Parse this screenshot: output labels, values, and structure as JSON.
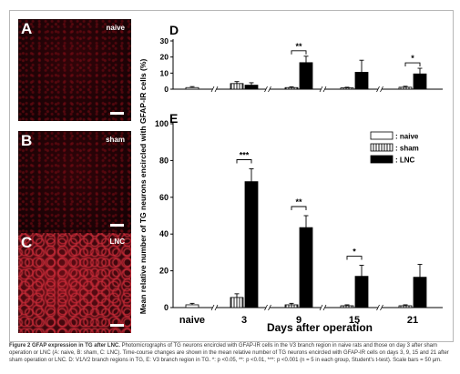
{
  "panels": {
    "a": {
      "letter": "A",
      "condition": "naive"
    },
    "b": {
      "letter": "B",
      "condition": "sham"
    },
    "c": {
      "letter": "C",
      "condition": "LNC"
    }
  },
  "colors": {
    "naive": "#ffffff",
    "sham": "#ffffff",
    "lnc": "#000000",
    "axis": "#000000"
  },
  "y_axis_label": "Mean relative number of TG neurons encircled with GFAP-IR cells (%)",
  "caption": {
    "title": "Figure 2 GFAP expression in TG after LNC.",
    "body": "Photomicrographs of TG neurons encircled with GFAP-IR cells in the V3 branch region in naive rats and those on day 3 after sham operation or LNC (A: naive, B: sham, C: LNC). Time-course changes are shown in the mean relative number of TG neurons encircled with GFAP-IR cells on days 3, 9, 15 and 21 after sham operation or LNC. D: V1/V2 branch regions in TG, E: V3 branch region in TG. *: p <0.05, **: p <0.01, ***: p <0.001 (n = 5 in each group, Student's t-test). Scale bars = 50 μm."
  },
  "chart_data": [
    {
      "panel": "D",
      "type": "bar",
      "categories": [
        "naive",
        "3",
        "9",
        "15",
        "21"
      ],
      "ylim": [
        0,
        30
      ],
      "yticks": [
        "0",
        "10",
        "20",
        "30"
      ],
      "series": [
        {
          "key": "naive",
          "values": [
            1.0,
            null,
            null,
            null,
            null
          ],
          "errors": [
            0.6,
            null,
            null,
            null,
            null
          ]
        },
        {
          "key": "sham",
          "values": [
            null,
            3.5,
            1.0,
            0.8,
            1.2
          ],
          "errors": [
            null,
            1.2,
            0.5,
            0.4,
            0.6
          ]
        },
        {
          "key": "lnc",
          "values": [
            null,
            2.5,
            16.5,
            10.5,
            9.5
          ],
          "errors": [
            null,
            1.5,
            4.0,
            7.5,
            3.5
          ]
        }
      ],
      "significance": [
        {
          "category": "9",
          "label": "**"
        },
        {
          "category": "21",
          "label": "*"
        }
      ]
    },
    {
      "panel": "E",
      "type": "bar",
      "categories": [
        "naive",
        "3",
        "9",
        "15",
        "21"
      ],
      "xlabel": "Days after operation",
      "ylim": [
        0,
        100
      ],
      "yticks": [
        "0",
        "20",
        "40",
        "60",
        "80",
        "100"
      ],
      "legend": {
        "position": "top-right",
        "entries": [
          ": naive",
          ": sham",
          ": LNC"
        ]
      },
      "series": [
        {
          "key": "naive",
          "values": [
            1.5,
            null,
            null,
            null,
            null
          ],
          "errors": [
            0.8,
            null,
            null,
            null,
            null
          ]
        },
        {
          "key": "sham",
          "values": [
            null,
            5.5,
            1.5,
            1.0,
            1.0
          ],
          "errors": [
            null,
            2.0,
            0.8,
            0.5,
            0.5
          ]
        },
        {
          "key": "lnc",
          "values": [
            null,
            68.5,
            43.5,
            17.0,
            16.5
          ],
          "errors": [
            null,
            7.0,
            6.5,
            6.0,
            7.0
          ]
        }
      ],
      "significance": [
        {
          "category": "3",
          "label": "***"
        },
        {
          "category": "9",
          "label": "**"
        },
        {
          "category": "15",
          "label": "*"
        }
      ]
    }
  ]
}
